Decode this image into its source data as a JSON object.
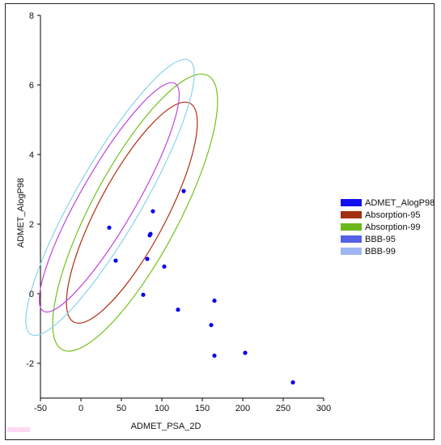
{
  "chart_data": {
    "type": "scatter",
    "xlabel": "ADMET_PSA_2D",
    "ylabel": "ADMET_AlogP98",
    "xlim": [
      -50,
      300
    ],
    "ylim": [
      -3,
      8
    ],
    "x_ticks": [
      "-50",
      "0",
      "50",
      "100",
      "150",
      "200",
      "250",
      "300"
    ],
    "y_ticks": [
      "-2",
      "0",
      "2",
      "4",
      "6",
      "8"
    ],
    "legend_position": "right",
    "series": [
      {
        "name": "ADMET_AlogP98",
        "color": "#0000ee",
        "points": [
          {
            "x": 35,
            "y": 1.9
          },
          {
            "x": 43,
            "y": 0.95
          },
          {
            "x": 77,
            "y": -0.03
          },
          {
            "x": 82,
            "y": 1.0
          },
          {
            "x": 85,
            "y": 1.68
          },
          {
            "x": 86,
            "y": 1.72
          },
          {
            "x": 89,
            "y": 2.37
          },
          {
            "x": 103,
            "y": 0.78
          },
          {
            "x": 120,
            "y": -0.46
          },
          {
            "x": 127,
            "y": 2.95
          },
          {
            "x": 161,
            "y": -0.9
          },
          {
            "x": 165,
            "y": -0.2
          },
          {
            "x": 165,
            "y": -1.78
          },
          {
            "x": 203,
            "y": -1.7
          },
          {
            "x": 262,
            "y": -2.55
          }
        ]
      },
      {
        "name": "Absorption-95",
        "color": "#b22e10",
        "ellipse": {
          "cx": 63,
          "cy": 2.33,
          "rx": 42,
          "ry": 3.56,
          "angle": -28
        }
      },
      {
        "name": "Absorption-99",
        "color": "#70c21a",
        "ellipse": {
          "cx": 67,
          "cy": 2.33,
          "rx": 54,
          "ry": 4.46,
          "angle": -28
        }
      },
      {
        "name": "BBB-95",
        "color": "#c044dd",
        "ellipse": {
          "cx": 35,
          "cy": 2.77,
          "rx": 34,
          "ry": 3.78,
          "angle": -30
        }
      },
      {
        "name": "BBB-99",
        "color": "#8ad2ee",
        "ellipse": {
          "cx": 36,
          "cy": 2.77,
          "rx": 41,
          "ry": 4.55,
          "angle": -30
        }
      }
    ],
    "legend": [
      {
        "label": "ADMET_AlogP98",
        "color": "#1010ee"
      },
      {
        "label": "Absorption-95",
        "color": "#a03010"
      },
      {
        "label": "Absorption-99",
        "color": "#6ab81c"
      },
      {
        "label": "BBB-95",
        "color": "#5560e8"
      },
      {
        "label": "BBB-99",
        "color": "#9fb6f2"
      }
    ]
  }
}
